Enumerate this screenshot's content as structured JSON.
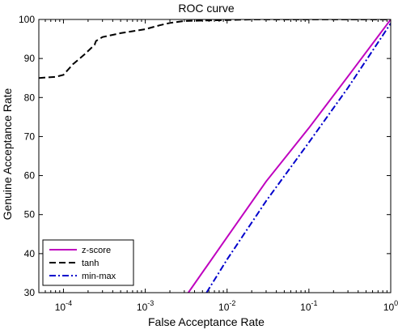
{
  "chart_data": {
    "type": "line",
    "title": "ROC curve",
    "xlabel": "False Acceptance Rate",
    "ylabel": "Genuine Acceptance Rate",
    "xscale": "log",
    "xlim": [
      5e-05,
      1
    ],
    "ylim": [
      30,
      100
    ],
    "grid": false,
    "legend_position": "bottom-left",
    "x_ticks": [
      {
        "value": 0.0001,
        "base": "10",
        "exp": "-4"
      },
      {
        "value": 0.001,
        "base": "10",
        "exp": "-3"
      },
      {
        "value": 0.01,
        "base": "10",
        "exp": "-2"
      },
      {
        "value": 0.1,
        "base": "10",
        "exp": "-1"
      },
      {
        "value": 1,
        "base": "10",
        "exp": "0"
      }
    ],
    "y_ticks": [
      30,
      40,
      50,
      60,
      70,
      80,
      90,
      100
    ],
    "series": [
      {
        "name": "z-score",
        "color": "#bf00bf",
        "style": "solid",
        "points": [
          [
            0.00336,
            30
          ],
          [
            0.01,
            44.2
          ],
          [
            0.03,
            58.5
          ],
          [
            0.1,
            72.2
          ],
          [
            0.3,
            85.4
          ],
          [
            1,
            100
          ]
        ]
      },
      {
        "name": "tanh",
        "color": "#000000",
        "style": "dashed",
        "points": [
          [
            5e-05,
            85
          ],
          [
            8e-05,
            85.3
          ],
          [
            0.0001,
            85.8
          ],
          [
            0.00013,
            88.5
          ],
          [
            0.00018,
            91
          ],
          [
            0.00024,
            93.5
          ],
          [
            0.00025,
            94.5
          ],
          [
            0.0003,
            95.5
          ],
          [
            0.0005,
            96.5
          ],
          [
            0.001,
            97.5
          ],
          [
            0.0015,
            98.5
          ],
          [
            0.002,
            99.1
          ],
          [
            0.003,
            99.6
          ],
          [
            0.02,
            100
          ],
          [
            1,
            100
          ]
        ]
      },
      {
        "name": "min-max",
        "color": "#0000cc",
        "style": "dashdot",
        "points": [
          [
            0.0056,
            30
          ],
          [
            0.01,
            38.5
          ],
          [
            0.03,
            53.5
          ],
          [
            0.1,
            68.5
          ],
          [
            0.3,
            82.5
          ],
          [
            1,
            99
          ]
        ]
      }
    ]
  }
}
